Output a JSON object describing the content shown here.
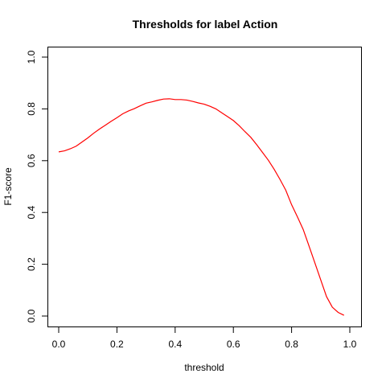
{
  "chart_data": {
    "type": "line",
    "title": "Thresholds for label Action",
    "xlabel": "threshold",
    "ylabel": "F1-score",
    "xlim": [
      0.0,
      1.0
    ],
    "ylim": [
      0.0,
      1.0
    ],
    "xticks": [
      "0.0",
      "0.2",
      "0.4",
      "0.6",
      "0.8",
      "1.0"
    ],
    "yticks": [
      "0.0",
      "0.2",
      "0.4",
      "0.6",
      "0.8",
      "1.0"
    ],
    "grid": false,
    "legend": "none",
    "series": [
      {
        "color": "#ff0000",
        "x": [
          0.0,
          0.02,
          0.04,
          0.06,
          0.08,
          0.1,
          0.12,
          0.14,
          0.16,
          0.18,
          0.2,
          0.22,
          0.24,
          0.26,
          0.28,
          0.3,
          0.32,
          0.34,
          0.36,
          0.38,
          0.4,
          0.42,
          0.44,
          0.46,
          0.48,
          0.5,
          0.52,
          0.54,
          0.56,
          0.58,
          0.6,
          0.62,
          0.64,
          0.66,
          0.68,
          0.7,
          0.72,
          0.74,
          0.76,
          0.78,
          0.8,
          0.82,
          0.84,
          0.86,
          0.88,
          0.9,
          0.92,
          0.94,
          0.96,
          0.98
        ],
        "y": [
          0.634,
          0.638,
          0.646,
          0.656,
          0.672,
          0.688,
          0.706,
          0.722,
          0.737,
          0.752,
          0.766,
          0.781,
          0.792,
          0.801,
          0.812,
          0.822,
          0.827,
          0.833,
          0.838,
          0.839,
          0.836,
          0.836,
          0.834,
          0.829,
          0.823,
          0.818,
          0.81,
          0.8,
          0.785,
          0.77,
          0.755,
          0.735,
          0.712,
          0.69,
          0.662,
          0.632,
          0.602,
          0.567,
          0.528,
          0.486,
          0.43,
          0.383,
          0.334,
          0.27,
          0.205,
          0.14,
          0.075,
          0.034,
          0.014,
          0.003
        ]
      }
    ]
  }
}
